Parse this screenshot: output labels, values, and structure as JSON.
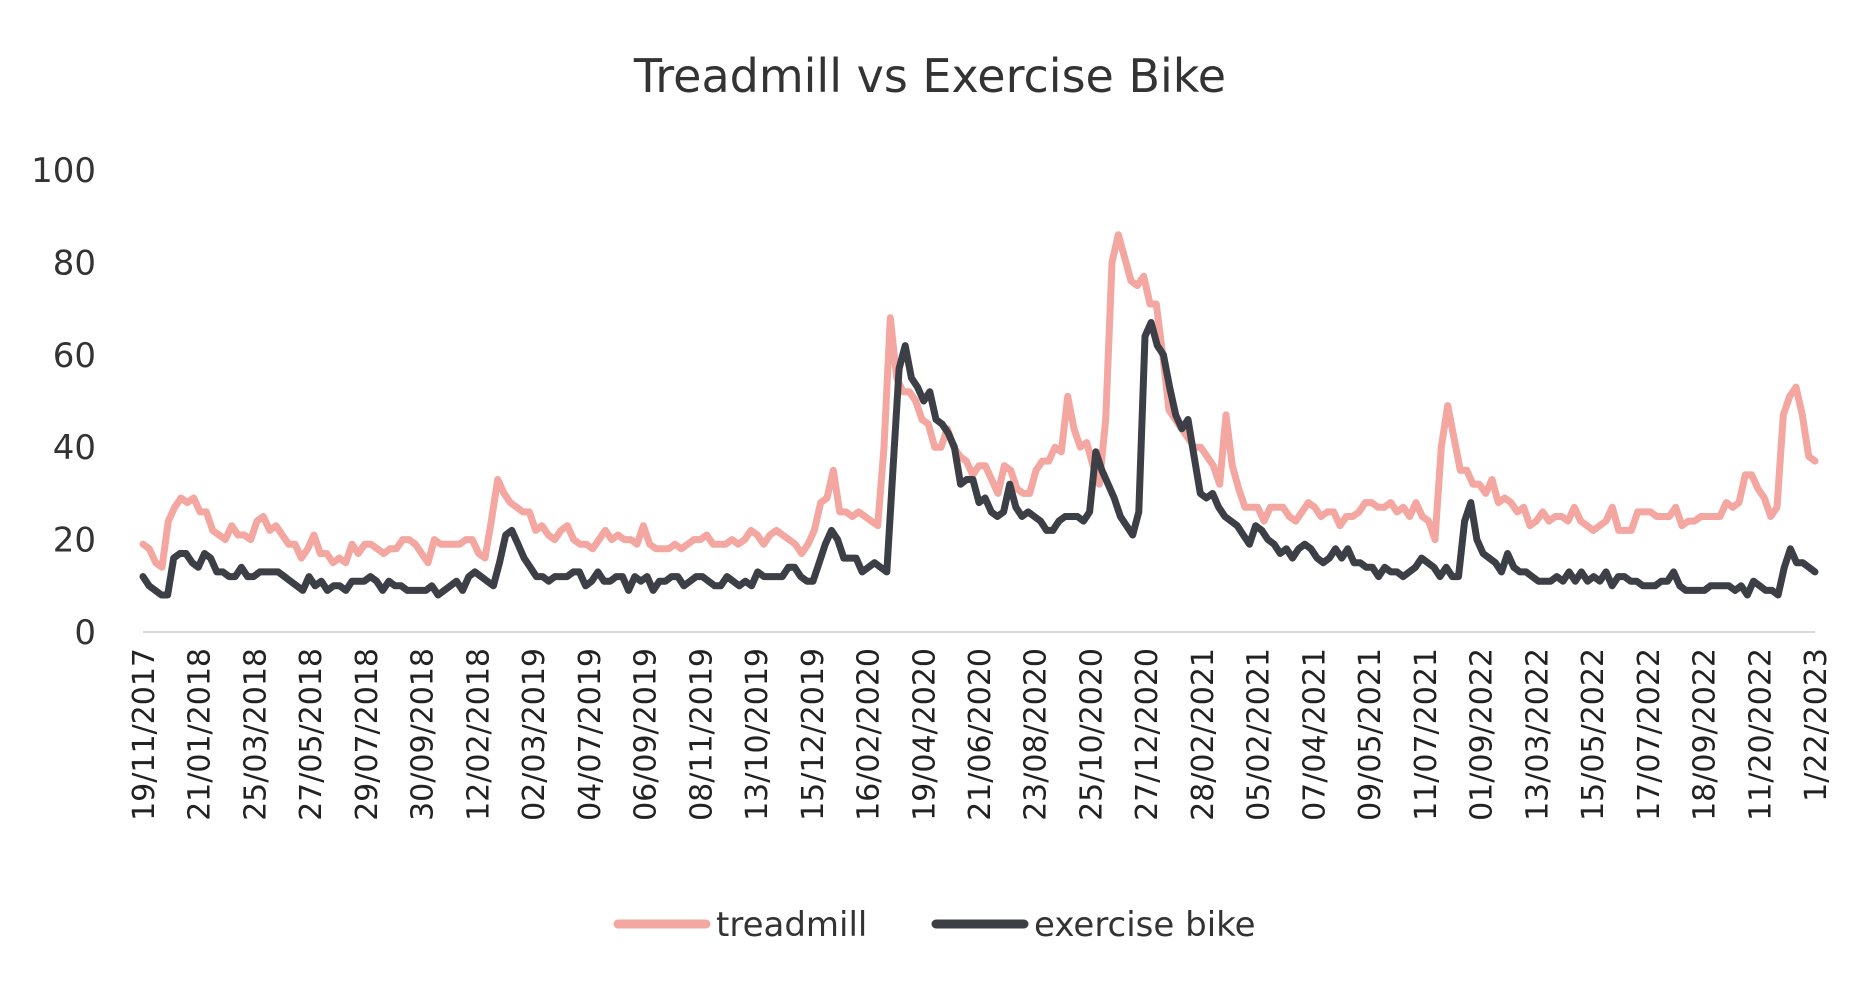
{
  "chart_data": {
    "type": "line",
    "title": "Treadmill vs Exercise Bike",
    "xlabel": "",
    "ylabel": "",
    "ylim": [
      0,
      100
    ],
    "yticks": [
      "0",
      "20",
      "40",
      "60",
      "80",
      "100"
    ],
    "grid": false,
    "legend_position": "bottom",
    "x_tick_labels": [
      "19/11/2017",
      "21/01/2018",
      "25/03/2018",
      "27/05/2018",
      "29/07/2018",
      "30/09/2018",
      "12/02/2018",
      "02/03/2019",
      "04/07/2019",
      "06/09/2019",
      "08/11/2019",
      "13/10/2019",
      "15/12/2019",
      "16/02/2020",
      "19/04/2020",
      "21/06/2020",
      "23/08/2020",
      "25/10/2020",
      "27/12/2020",
      "28/02/2021",
      "05/02/2021",
      "07/04/2021",
      "09/05/2021",
      "11/07/2021",
      "01/09/2022",
      "13/03/2022",
      "15/05/2022",
      "17/07/2022",
      "18/09/2022",
      "11/20/2022",
      "1/22/2023"
    ],
    "series": [
      {
        "name": "treadmill",
        "color": "#f4a6a0",
        "values": [
          19,
          18,
          15,
          14,
          24,
          27,
          29,
          28,
          29,
          26,
          26,
          22,
          21,
          20,
          23,
          21,
          21,
          20,
          24,
          25,
          22,
          23,
          21,
          19,
          19,
          16,
          18,
          21,
          17,
          17,
          15,
          16,
          15,
          19,
          17,
          19,
          19,
          18,
          17,
          18,
          18,
          20,
          20,
          19,
          17,
          15,
          20,
          19,
          19,
          19,
          19,
          20,
          20,
          17,
          16,
          24,
          33,
          30,
          28,
          27,
          26,
          26,
          22,
          23,
          21,
          20,
          22,
          23,
          20,
          19,
          19,
          18,
          20,
          22,
          20,
          21,
          20,
          20,
          19,
          23,
          19,
          18,
          18,
          18,
          19,
          18,
          19,
          20,
          20,
          21,
          19,
          19,
          19,
          20,
          19,
          20,
          22,
          21,
          19,
          21,
          22,
          21,
          20,
          19,
          17,
          19,
          22,
          28,
          29,
          35,
          26,
          26,
          25,
          26,
          25,
          24,
          23,
          40,
          68,
          55,
          52,
          52,
          50,
          46,
          45,
          40,
          40,
          44,
          40,
          38,
          37,
          34,
          36,
          36,
          33,
          30,
          36,
          35,
          31,
          30,
          30,
          35,
          37,
          37,
          40,
          39,
          51,
          44,
          40,
          41,
          36,
          32,
          46,
          80,
          86,
          81,
          76,
          75,
          77,
          71,
          71,
          60,
          48,
          46,
          44,
          42,
          40,
          40,
          38,
          36,
          32,
          47,
          36,
          31,
          27,
          27,
          27,
          24,
          27,
          27,
          27,
          25,
          24,
          26,
          28,
          27,
          25,
          26,
          26,
          23,
          25,
          25,
          26,
          28,
          28,
          27,
          27,
          28,
          26,
          27,
          25,
          28,
          25,
          24,
          20,
          40,
          49,
          42,
          35,
          35,
          32,
          32,
          30,
          33,
          28,
          29,
          28,
          26,
          27,
          23,
          24,
          26,
          24,
          25,
          25,
          24,
          27,
          24,
          23,
          22,
          23,
          24,
          27,
          22,
          22,
          22,
          26,
          26,
          26,
          25,
          25,
          25,
          27,
          23,
          24,
          24,
          25,
          25,
          25,
          25,
          28,
          27,
          28,
          34,
          34,
          31,
          29,
          25,
          27,
          47,
          51,
          53,
          47,
          38,
          37
        ]
      },
      {
        "name": "exercise bike",
        "color": "#3d3f47",
        "values": [
          12,
          10,
          9,
          8,
          8,
          16,
          17,
          17,
          15,
          14,
          17,
          16,
          13,
          13,
          12,
          12,
          14,
          12,
          12,
          13,
          13,
          13,
          13,
          12,
          11,
          10,
          9,
          12,
          10,
          11,
          9,
          10,
          10,
          9,
          11,
          11,
          11,
          12,
          11,
          9,
          11,
          10,
          10,
          9,
          9,
          9,
          9,
          10,
          8,
          9,
          10,
          11,
          9,
          12,
          13,
          12,
          11,
          10,
          15,
          21,
          22,
          19,
          16,
          14,
          12,
          12,
          11,
          12,
          12,
          12,
          13,
          13,
          10,
          11,
          13,
          11,
          11,
          12,
          12,
          9,
          12,
          11,
          12,
          9,
          11,
          11,
          12,
          12,
          10,
          11,
          12,
          12,
          11,
          10,
          10,
          12,
          11,
          10,
          11,
          10,
          13,
          12,
          12,
          12,
          12,
          14,
          14,
          12,
          11,
          11,
          15,
          19,
          22,
          20,
          16,
          16,
          16,
          13,
          14,
          15,
          14,
          13,
          35,
          57,
          62,
          55,
          53,
          50,
          52,
          46,
          45,
          43,
          40,
          32,
          33,
          33,
          28,
          29,
          26,
          25,
          26,
          32,
          27,
          25,
          26,
          25,
          24,
          22,
          22,
          24,
          25,
          25,
          25,
          24,
          26,
          39,
          35,
          32,
          29,
          25,
          23,
          21,
          26,
          64,
          67,
          62,
          60,
          53,
          47,
          44,
          46,
          38,
          30,
          29,
          30,
          27,
          25,
          24,
          23,
          21,
          19,
          23,
          22,
          20,
          19,
          17,
          18,
          16,
          18,
          19,
          18,
          16,
          15,
          16,
          18,
          16,
          18,
          15,
          15,
          14,
          14,
          12,
          14,
          13,
          13,
          12,
          13,
          14,
          16,
          15,
          14,
          12,
          14,
          12,
          12,
          24,
          28,
          20,
          17,
          16,
          15,
          13,
          17,
          14,
          13,
          13,
          12,
          11,
          11,
          11,
          12,
          11,
          13,
          11,
          13,
          11,
          12,
          11,
          13,
          10,
          12,
          12,
          11,
          11,
          10,
          10,
          10,
          11,
          11,
          13,
          10,
          9,
          9,
          9,
          9,
          10,
          10,
          10,
          10,
          9,
          10,
          8,
          11,
          10,
          9,
          9,
          8,
          14,
          18,
          15,
          15,
          14,
          13
        ]
      }
    ]
  }
}
